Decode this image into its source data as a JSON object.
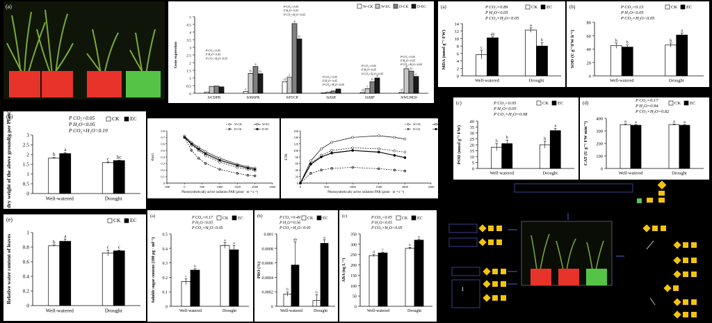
{
  "chart_data": [
    {
      "id": "dry_weight",
      "letter": "(b)",
      "type": "bar",
      "categories": [
        "Well-watered",
        "Drought"
      ],
      "series": [
        {
          "name": "CK",
          "values": [
            1.82,
            1.58
          ],
          "err": [
            0.03,
            0.04
          ],
          "sig": [
            "b",
            "c"
          ]
        },
        {
          "name": "EC",
          "values": [
            2.05,
            1.69
          ],
          "err": [
            0.05,
            0.02
          ],
          "sig": [
            "a",
            "bc"
          ]
        }
      ],
      "ylabel": "The dry weight of the above ground(g per Plant)",
      "ylim": [
        0,
        3
      ],
      "yticks": [
        "0",
        "0.5",
        "1",
        "1.5",
        "2",
        "2.5",
        "3"
      ],
      "stats": [
        "P_CO2<0.05",
        "P_H2O<0.05",
        "P_CO2×H2O=0.19"
      ]
    },
    {
      "id": "gene_expression",
      "letter": "",
      "type": "bar",
      "categories": [
        "SiCDPK",
        "SiMAPK",
        "SiP5CR",
        "SiASR",
        "SiABF",
        "SiWLIM2b"
      ],
      "series": [
        {
          "name": "W-CK",
          "values": [
            0.08,
            0.12,
            0.75,
            0.03,
            0.05,
            0.06
          ],
          "sig": [
            "",
            "c",
            "d",
            "",
            "d",
            "d"
          ]
        },
        {
          "name": "W-EC",
          "values": [
            0.45,
            1.3,
            1.05,
            0.08,
            0.3,
            1.6
          ],
          "sig": [
            "",
            "b",
            "c",
            "",
            "c",
            "a"
          ]
        },
        {
          "name": "D-CK",
          "values": [
            0.47,
            1.75,
            4.55,
            0.15,
            0.75,
            1.45
          ],
          "sig": [
            "",
            "a",
            "a",
            "",
            "b",
            "b"
          ]
        },
        {
          "name": "D-EC",
          "values": [
            0.42,
            1.28,
            3.55,
            0.28,
            1.0,
            1.1
          ],
          "sig": [
            "",
            "b",
            "b",
            "",
            "a",
            "c"
          ]
        }
      ],
      "ylabel": "Gene expression",
      "ylim": [
        0,
        5
      ],
      "yticks": [
        "0",
        "0.5",
        "1",
        "1.5",
        "2",
        "2.5",
        "3",
        "3.5",
        "4",
        "4.5",
        "5"
      ],
      "stats": {
        "SiP5CR": [
          "P_CO2<0.05",
          "P_H2O<0.05",
          "P_CO2×H2O<0.05"
        ],
        "SiCDPK": [
          "P_CO2<0.05",
          "P_H2O<0.05",
          "P_CO2×H2O<0.05"
        ],
        "SiASR": [
          "P_CO2<0.05",
          "P_H2O<0.05",
          "P_CO2×H2O<0.05"
        ],
        "SiABF": [
          "P_CO2<0.05",
          "P_H2O<0.05",
          "P_CO2×H2O<0.05"
        ],
        "SiWLIM2b": [
          "P_CO2<0.05",
          "P_H2O<0.05",
          "P_CO2×H2O<0.05"
        ]
      }
    },
    {
      "id": "phi_psii",
      "letter": "",
      "type": "line",
      "x": [
        0,
        200,
        400,
        600,
        1000,
        1500,
        1800,
        2000
      ],
      "series": [
        {
          "name": "W-CK",
          "values": [
            0.72,
            0.58,
            0.5,
            0.42,
            0.32,
            0.24,
            0.21,
            0.19
          ]
        },
        {
          "name": "W-EC",
          "values": [
            0.72,
            0.62,
            0.55,
            0.48,
            0.38,
            0.29,
            0.25,
            0.23
          ]
        },
        {
          "name": "D-CK",
          "values": [
            0.7,
            0.5,
            0.38,
            0.3,
            0.21,
            0.15,
            0.12,
            0.11
          ]
        },
        {
          "name": "D-EC",
          "values": [
            0.7,
            0.6,
            0.52,
            0.45,
            0.35,
            0.27,
            0.23,
            0.21
          ]
        }
      ],
      "ylabel": "Φpsii",
      "xlabel": "Photosynthetically active radiation PAR (μmol · m⁻² s⁻¹)",
      "xlim": [
        -500,
        2500
      ],
      "ylim": [
        0,
        0.8
      ],
      "xticks": [
        "-500",
        "0",
        "500",
        "1000",
        "1500",
        "2000",
        "2500"
      ],
      "yticks": [
        "0",
        "0.1",
        "0.2",
        "0.3",
        "0.4",
        "0.5",
        "0.6",
        "0.7",
        "0.8"
      ]
    },
    {
      "id": "etr",
      "letter": "",
      "type": "line",
      "x": [
        0,
        200,
        400,
        600,
        1000,
        1500,
        1800,
        2000
      ],
      "series": [
        {
          "name": "W-CK",
          "values": [
            0,
            60,
            85,
            100,
            108,
            105,
            99,
            95
          ]
        },
        {
          "name": "W-EC",
          "values": [
            0,
            68,
            105,
            125,
            140,
            145,
            140,
            135
          ]
        },
        {
          "name": "D-CK",
          "values": [
            0,
            30,
            40,
            45,
            48,
            44,
            40,
            37
          ]
        },
        {
          "name": "D-EC",
          "values": [
            0,
            58,
            80,
            92,
            100,
            95,
            85,
            78
          ]
        }
      ],
      "ylabel": "ETR",
      "xlabel": "Photosynthetically active radiation PAR (μmol · m⁻² s⁻¹)",
      "xlim": [
        0,
        2500
      ],
      "ylim": [
        0,
        160
      ],
      "xticks": [
        "0",
        "500",
        "1000",
        "1500",
        "2000",
        "2500"
      ],
      "yticks": [
        "0",
        "20",
        "40",
        "60",
        "80",
        "100",
        "120",
        "140",
        "160"
      ]
    },
    {
      "id": "mda",
      "letter": "(a)",
      "type": "bar",
      "categories": [
        "Well-watered",
        "Drought"
      ],
      "series": [
        {
          "name": "CK",
          "values": [
            5.7,
            12.3
          ],
          "err": [
            1.2,
            0.6
          ],
          "sig": [
            "c",
            "a"
          ]
        },
        {
          "name": "EC",
          "values": [
            10.2,
            8.0
          ],
          "err": [
            0.3,
            0.9
          ],
          "sig": [
            "ab",
            "b"
          ]
        }
      ],
      "ylabel": "MDA (nmol g⁻¹ FW)",
      "ylim": [
        0,
        14
      ],
      "yticks": [
        "0",
        "2",
        "4",
        "6",
        "8",
        "10",
        "12",
        "14"
      ],
      "stats": [
        "P_CO2=0.89",
        "P_H2O<0.05",
        "P_CO2×H2O<0.05"
      ]
    },
    {
      "id": "sod",
      "letter": "(b)",
      "type": "bar",
      "categories": [
        "Well-watered",
        "Drought"
      ],
      "series": [
        {
          "name": "CK",
          "values": [
            45,
            46
          ],
          "err": [
            4,
            3
          ],
          "sig": [
            "b",
            "b"
          ]
        },
        {
          "name": "EC",
          "values": [
            43,
            61
          ],
          "err": [
            3,
            3
          ],
          "sig": [
            "b",
            "a"
          ]
        }
      ],
      "ylabel": "SOD (U g⁻¹FW h⁻¹)",
      "ylim": [
        0,
        80
      ],
      "yticks": [
        "0",
        "20",
        "40",
        "60",
        "80"
      ],
      "stats": [
        "P_CO2=0.13",
        "P_H2O<0.05",
        "P_CO2×H2O<0.05"
      ]
    },
    {
      "id": "pod",
      "letter": "(c)",
      "type": "bar",
      "categories": [
        "Well-watered",
        "Drought"
      ],
      "series": [
        {
          "name": "CK",
          "values": [
            18,
            20
          ],
          "err": [
            3,
            3
          ],
          "sig": [
            "b",
            "b"
          ]
        },
        {
          "name": "EC",
          "values": [
            21,
            32
          ],
          "err": [
            3,
            2
          ],
          "sig": [
            "b",
            "a"
          ]
        }
      ],
      "ylabel": "POD (nmol g⁻¹ FW)",
      "ylim": [
        0,
        40
      ],
      "yticks": [
        "0",
        "5",
        "10",
        "15",
        "20",
        "25",
        "30",
        "35",
        "40"
      ],
      "stats": [
        "P_CO2<0.05",
        "P_H2O<0.05",
        "P_CO2×H2O=0.08"
      ]
    },
    {
      "id": "cat",
      "letter": "(d)",
      "type": "bar",
      "categories": [
        "Well-watered",
        "Drought"
      ],
      "series": [
        {
          "name": "CK",
          "values": [
            350,
            350
          ],
          "err": [
            5,
            5
          ],
          "sig": [
            "a",
            "a"
          ]
        },
        {
          "name": "EC",
          "values": [
            345,
            345
          ],
          "err": [
            5,
            5
          ],
          "sig": [
            "a",
            "a"
          ]
        }
      ],
      "ylabel": "CAT (U g⁻¹ FW min⁻¹)",
      "ylim": [
        0,
        400
      ],
      "yticks": [
        "0",
        "100",
        "200",
        "300",
        "400"
      ],
      "stats": [
        "P_CO2=0.17",
        "P_H2O=0.94",
        "P_CO2×H2O=0.82"
      ]
    },
    {
      "id": "rwc",
      "letter": "(e)",
      "type": "bar",
      "categories": [
        "Well-watered",
        "Drought"
      ],
      "series": [
        {
          "name": "CK",
          "values": [
            0.82,
            0.72
          ],
          "err": [
            0.01,
            0.04
          ],
          "sig": [
            "b",
            "c"
          ]
        },
        {
          "name": "EC",
          "values": [
            0.88,
            0.75
          ],
          "err": [
            0.03,
            0.01
          ],
          "sig": [
            "a",
            "c"
          ]
        }
      ],
      "ylabel": "Relative water content of leaves",
      "ylim": [
        0,
        1
      ],
      "yticks": [
        "0",
        "0.2",
        "0.4",
        "0.6",
        "0.8",
        "1"
      ],
      "stats": []
    },
    {
      "id": "soluble_sugar",
      "letter": "(a)",
      "type": "bar",
      "categories": [
        "Well-watered",
        "Drought"
      ],
      "series": [
        {
          "name": "CK",
          "values": [
            0.17,
            0.42
          ],
          "err": [
            0.02,
            0.02
          ],
          "sig": [
            "c",
            "a"
          ]
        },
        {
          "name": "EC",
          "values": [
            0.25,
            0.39
          ],
          "err": [
            0.01,
            0.03
          ],
          "sig": [
            "b",
            "a"
          ]
        }
      ],
      "ylabel": "Soluble sugar content (100 μg · ml⁻¹)",
      "ylim": [
        0,
        0.5
      ],
      "yticks": [
        "0",
        "0.1",
        "0.2",
        "0.3",
        "0.4",
        "0.5"
      ],
      "stats": [
        "P_CO2=0.17",
        "P_H2O<0.05",
        "P_CO2×H2O<0.05"
      ]
    },
    {
      "id": "pro",
      "letter": "(b)",
      "type": "bar",
      "categories": [
        "Well-watered",
        "Drought"
      ],
      "series": [
        {
          "name": "CK",
          "values": [
            0.00017,
            8e-05
          ],
          "err": [
            3e-05,
            8e-05
          ],
          "sig": [
            "b",
            "b"
          ]
        },
        {
          "name": "EC",
          "values": [
            0.00057,
            0.00087
          ],
          "err": [
            0.00032,
            5e-05
          ],
          "sig": [
            "ab",
            "a"
          ]
        }
      ],
      "ylabel": "PRO (%)",
      "ylim": [
        0,
        0.001
      ],
      "yticks": [
        "0",
        "0.0002",
        "0.0004",
        "0.0006",
        "0.0008",
        "0.001"
      ],
      "stats": [
        "P_CO2=0.49",
        "P_H2O=0.56",
        "P_CO2×H2O<0.05"
      ]
    },
    {
      "id": "aba",
      "letter": "(c)",
      "type": "bar",
      "categories": [
        "Well-watered",
        "Drought"
      ],
      "series": [
        {
          "name": "CK",
          "values": [
            245,
            280
          ],
          "err": [
            5,
            5
          ],
          "sig": [
            "d",
            "b"
          ]
        },
        {
          "name": "EC",
          "values": [
            258,
            320
          ],
          "err": [
            4,
            4
          ],
          "sig": [
            "c",
            "a"
          ]
        }
      ],
      "ylabel": "ABA (ng L⁻¹)",
      "ylim": [
        0,
        350
      ],
      "yticks": [
        "0",
        "50",
        "100",
        "150",
        "200",
        "250",
        "300",
        "350"
      ],
      "stats": [
        "P_CO2<0.05",
        "P_H2O<0.05",
        "P_CO2×H2O<0.05"
      ]
    }
  ],
  "photo": {
    "letter": "(a)"
  },
  "schematic": {
    "marker": "I"
  },
  "colors": {
    "bar_ck": "#ffffff",
    "bar_ec": "#000000",
    "bar_w_ck": "#ffffff",
    "bar_w_ec": "#c8c8c8",
    "bar_d_ck": "#808080",
    "bar_d_ec": "#1a1a1a",
    "pot_red": "#e8332a",
    "pot_green": "#55c446",
    "schematic_yellow": "#f2c40f",
    "schematic_green": "#5cbf5c"
  }
}
